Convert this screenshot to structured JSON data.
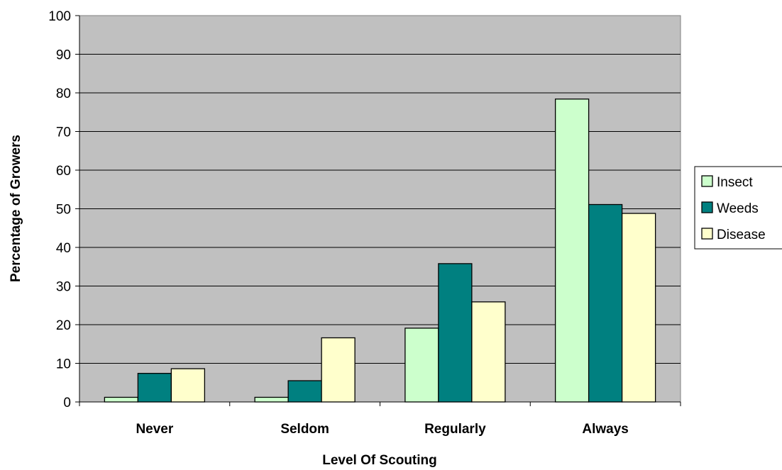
{
  "chart_data": {
    "type": "bar",
    "title": "",
    "xlabel": "Level Of Scouting",
    "ylabel": "Percentage of Growers",
    "categories": [
      "Never",
      "Seldom",
      "Regularly",
      "Always"
    ],
    "series": [
      {
        "name": "Insect",
        "values": [
          1.2,
          1.2,
          19.1,
          78.4
        ],
        "color": "#ccffcc"
      },
      {
        "name": "Weeds",
        "values": [
          7.4,
          5.5,
          35.8,
          51.1
        ],
        "color": "#008080"
      },
      {
        "name": "Disease",
        "values": [
          8.6,
          16.6,
          25.9,
          48.8
        ],
        "color": "#ffffcc"
      }
    ],
    "ylim": [
      0,
      100
    ],
    "yticks": [
      "0",
      "10",
      "20",
      "30",
      "40",
      "50",
      "60",
      "70",
      "80",
      "90",
      "100"
    ],
    "grid": true,
    "plot_background": "#c0c0c0",
    "legend_position": "right"
  }
}
